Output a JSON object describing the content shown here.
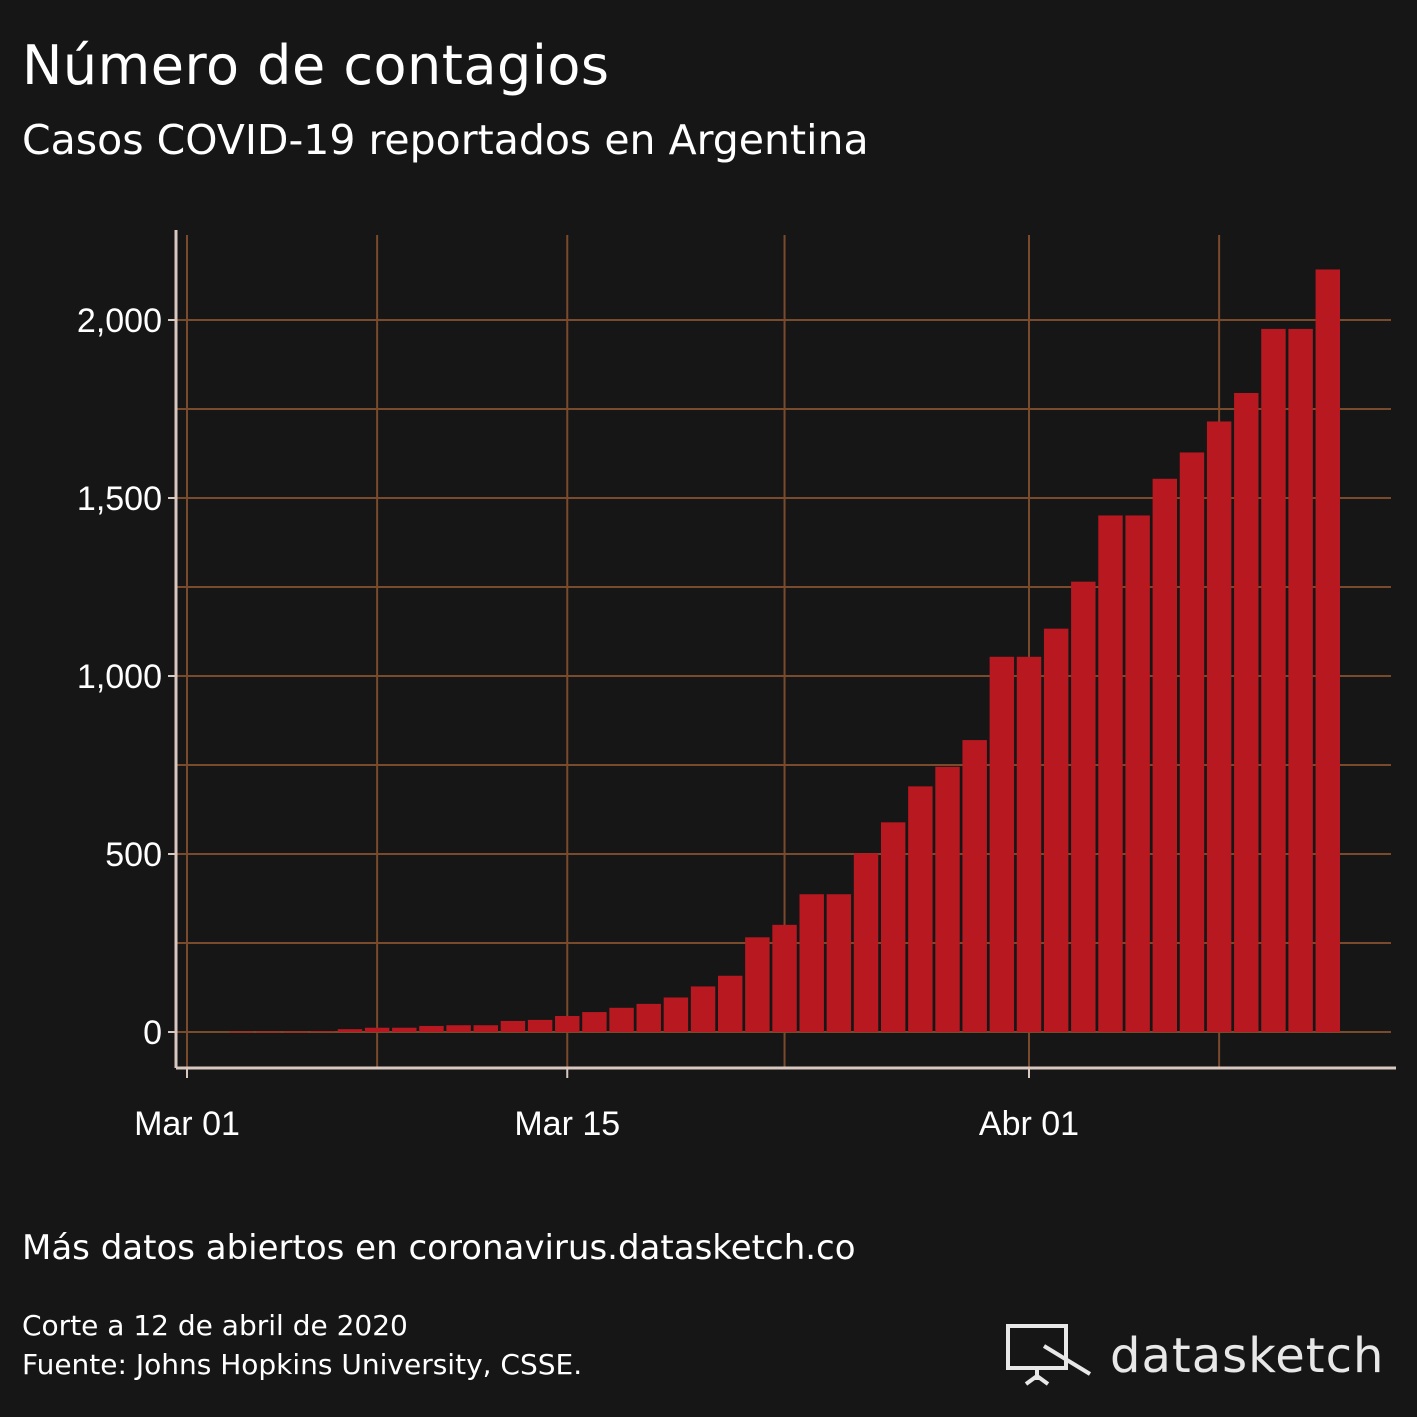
{
  "header": {
    "title": "Número de contagios",
    "subtitle": "Casos COVID-19 reportados en Argentina"
  },
  "footer": {
    "more_data": "Más datos abiertos en coronavirus.datasketch.co",
    "cutoff": "Corte a 12 de abril de 2020",
    "source": "Fuente: Johns Hopkins University, CSSE.",
    "logo_text": "datasketch",
    "logo_icon": "monitor-icon"
  },
  "colors": {
    "background": "#161616",
    "bar": "#b81820",
    "grid": "#7a4a2c",
    "axis": "#d8c8c0",
    "text": "#ffffff"
  },
  "chart_data": {
    "type": "bar",
    "title": "Número de contagios",
    "subtitle": "Casos COVID-19 reportados en Argentina",
    "xlabel": "",
    "ylabel": "",
    "x_ticks": [
      "Mar 01",
      "Mar 15",
      "Abr 01"
    ],
    "y_ticks": [
      "0",
      "500",
      "1,000",
      "1,500",
      "2,000"
    ],
    "ylim": [
      -100,
      2250
    ],
    "grid": true,
    "dates": [
      "2020-03-03",
      "2020-03-04",
      "2020-03-05",
      "2020-03-06",
      "2020-03-07",
      "2020-03-08",
      "2020-03-09",
      "2020-03-10",
      "2020-03-11",
      "2020-03-12",
      "2020-03-13",
      "2020-03-14",
      "2020-03-15",
      "2020-03-16",
      "2020-03-17",
      "2020-03-18",
      "2020-03-19",
      "2020-03-20",
      "2020-03-21",
      "2020-03-22",
      "2020-03-23",
      "2020-03-24",
      "2020-03-25",
      "2020-03-26",
      "2020-03-27",
      "2020-03-28",
      "2020-03-29",
      "2020-03-30",
      "2020-03-31",
      "2020-04-01",
      "2020-04-02",
      "2020-04-03",
      "2020-04-04",
      "2020-04-05",
      "2020-04-06",
      "2020-04-07",
      "2020-04-08",
      "2020-04-09",
      "2020-04-10",
      "2020-04-11",
      "2020-04-12"
    ],
    "values": [
      1,
      1,
      1,
      2,
      8,
      12,
      12,
      17,
      19,
      19,
      31,
      34,
      45,
      56,
      68,
      79,
      97,
      128,
      158,
      266,
      301,
      387,
      387,
      502,
      589,
      690,
      745,
      820,
      1054,
      1054,
      1133,
      1265,
      1451,
      1451,
      1554,
      1628,
      1715,
      1795,
      1975,
      1975,
      2142
    ]
  }
}
